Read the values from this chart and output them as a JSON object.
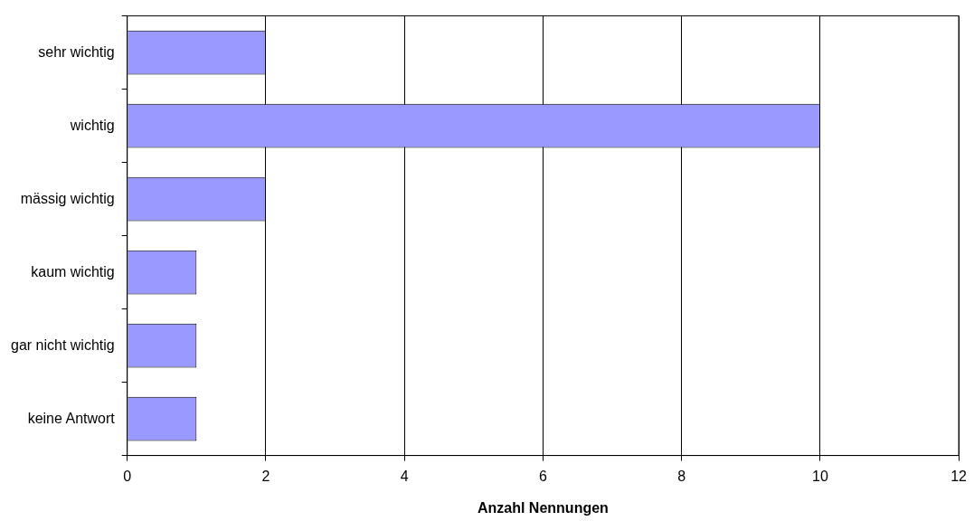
{
  "chart_data": {
    "type": "bar",
    "orientation": "horizontal",
    "categories": [
      "sehr wichtig",
      "wichtig",
      "mässig wichtig",
      "kaum wichtig",
      "gar nicht wichtig",
      "keine Antwort"
    ],
    "values": [
      2,
      10,
      2,
      1,
      1,
      1
    ],
    "color": "#9999ff",
    "xlabel": "Anzahl Nennungen",
    "xlim": [
      0,
      12
    ],
    "xticks": [
      0,
      2,
      4,
      6,
      8,
      10,
      12
    ],
    "grid": "x",
    "legend": false
  }
}
